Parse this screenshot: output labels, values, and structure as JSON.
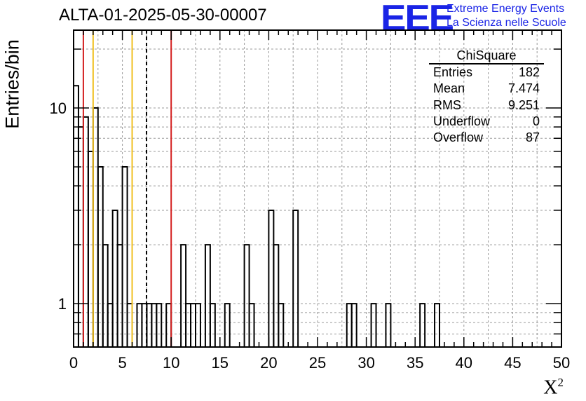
{
  "title": "ALTA-01-2025-05-30-00007",
  "logo": {
    "mark": "EEE",
    "line1": "Extreme Energy Events",
    "line2": "La Scienza nelle Scuole",
    "color": "#1a24e6"
  },
  "stats_box": {
    "title": "ChiSquare",
    "rows": [
      {
        "label": "Entries",
        "value": "182"
      },
      {
        "label": "Mean",
        "value": "7.474"
      },
      {
        "label": "RMS",
        "value": "9.251"
      },
      {
        "label": "Underflow",
        "value": "0"
      },
      {
        "label": "Overflow",
        "value": "87"
      }
    ]
  },
  "chart_data": {
    "type": "histogram",
    "xlabel": "X",
    "xlabel_superscript": "2",
    "ylabel": "Entries/bin",
    "xlim": [
      0,
      50
    ],
    "ylim": [
      0.6,
      25
    ],
    "ylog": true,
    "grid": true,
    "bin_width": 0.5,
    "x_ticks": [
      0,
      5,
      10,
      15,
      20,
      25,
      30,
      35,
      40,
      45,
      50
    ],
    "y_ticks": [
      {
        "value": 1,
        "label": "1"
      },
      {
        "value": 10,
        "label": "10"
      }
    ],
    "bins": [
      {
        "x": 0.0,
        "y": 13
      },
      {
        "x": 0.5,
        "y": 8
      },
      {
        "x": 1.0,
        "y": 9
      },
      {
        "x": 1.5,
        "y": 6
      },
      {
        "x": 2.0,
        "y": 10
      },
      {
        "x": 2.5,
        "y": 5
      },
      {
        "x": 3.0,
        "y": 2
      },
      {
        "x": 3.5,
        "y": 1
      },
      {
        "x": 4.0,
        "y": 3
      },
      {
        "x": 4.5,
        "y": 2
      },
      {
        "x": 5.0,
        "y": 5
      },
      {
        "x": 5.5,
        "y": 1
      },
      {
        "x": 6.5,
        "y": 1
      },
      {
        "x": 7.0,
        "y": 1
      },
      {
        "x": 7.5,
        "y": 1
      },
      {
        "x": 8.0,
        "y": 1
      },
      {
        "x": 8.5,
        "y": 1
      },
      {
        "x": 9.5,
        "y": 1
      },
      {
        "x": 11.0,
        "y": 2
      },
      {
        "x": 11.5,
        "y": 1
      },
      {
        "x": 12.0,
        "y": 1
      },
      {
        "x": 12.5,
        "y": 1
      },
      {
        "x": 13.5,
        "y": 2
      },
      {
        "x": 14.0,
        "y": 1
      },
      {
        "x": 15.5,
        "y": 1
      },
      {
        "x": 17.5,
        "y": 2
      },
      {
        "x": 18.0,
        "y": 1
      },
      {
        "x": 20.0,
        "y": 3
      },
      {
        "x": 20.5,
        "y": 2
      },
      {
        "x": 21.0,
        "y": 1
      },
      {
        "x": 22.5,
        "y": 3
      },
      {
        "x": 28.0,
        "y": 1
      },
      {
        "x": 28.5,
        "y": 1
      },
      {
        "x": 30.5,
        "y": 1
      },
      {
        "x": 32.0,
        "y": 1
      },
      {
        "x": 35.5,
        "y": 1
      },
      {
        "x": 37.0,
        "y": 1
      }
    ],
    "vertical_lines": [
      {
        "x": 1.0,
        "color": "#d42020",
        "style": "solid"
      },
      {
        "x": 2.0,
        "color": "#f0c020",
        "style": "solid"
      },
      {
        "x": 6.0,
        "color": "#f0c020",
        "style": "solid"
      },
      {
        "x": 7.474,
        "color": "#000000",
        "style": "dashed"
      },
      {
        "x": 10.0,
        "color": "#d42020",
        "style": "solid"
      }
    ]
  }
}
